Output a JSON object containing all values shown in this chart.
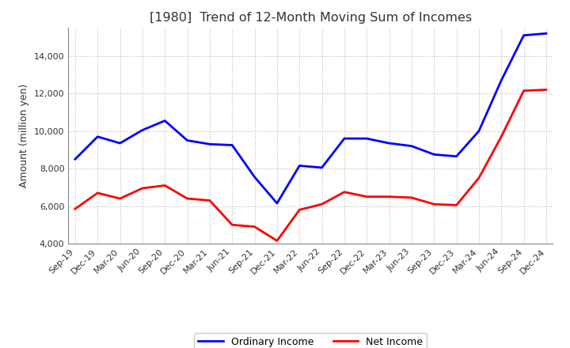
{
  "title": "[1980]  Trend of 12-Month Moving Sum of Incomes",
  "ylabel": "Amount (million yen)",
  "ylim": [
    4000,
    15500
  ],
  "yticks": [
    4000,
    6000,
    8000,
    10000,
    12000,
    14000
  ],
  "x_labels": [
    "Sep-19",
    "Dec-19",
    "Mar-20",
    "Jun-20",
    "Sep-20",
    "Dec-20",
    "Mar-21",
    "Jun-21",
    "Sep-21",
    "Dec-21",
    "Mar-22",
    "Jun-22",
    "Sep-22",
    "Dec-22",
    "Mar-23",
    "Jun-23",
    "Sep-23",
    "Dec-23",
    "Mar-24",
    "Jun-24",
    "Sep-24",
    "Dec-24"
  ],
  "ordinary_income": [
    8500,
    9700,
    9350,
    10050,
    10550,
    9500,
    9300,
    9250,
    7550,
    6150,
    8150,
    8050,
    9600,
    9600,
    9350,
    9200,
    8750,
    8650,
    10000,
    12700,
    15100,
    15200
  ],
  "net_income": [
    5850,
    6700,
    6400,
    6950,
    7100,
    6400,
    6300,
    5000,
    4900,
    4150,
    5800,
    6100,
    6750,
    6500,
    6500,
    6450,
    6100,
    6050,
    7500,
    9700,
    12150,
    12200
  ],
  "ordinary_color": "#0000FF",
  "net_color": "#FF0000",
  "bg_color": "#FFFFFF",
  "grid_color": "#BBBBBB",
  "title_color": "#333333",
  "spine_color": "#888888"
}
